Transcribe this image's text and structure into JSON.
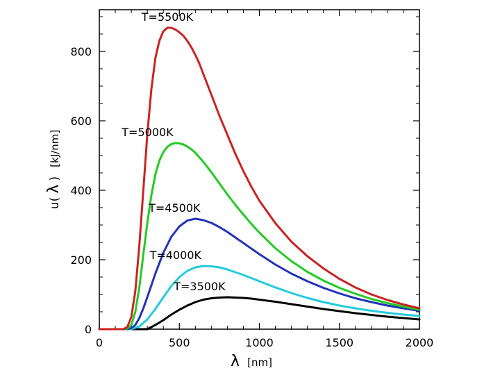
{
  "chart_data": {
    "type": "line",
    "title": "",
    "xlabel_symbol": "λ",
    "xlabel_unit": "[nm]",
    "ylabel_prefix": "u(",
    "ylabel_symbol": "λ",
    "ylabel_suffix": ")",
    "ylabel_unit": "[kJ/nm]",
    "xlim": [
      0,
      2000
    ],
    "ylim": [
      0,
      920
    ],
    "xticks": [
      0,
      500,
      1000,
      1500,
      2000
    ],
    "yticks": [
      0,
      200,
      400,
      600,
      800
    ],
    "grid": false,
    "series": [
      {
        "name": "T=5500K",
        "color": "#cc2222",
        "x": [
          150,
          175,
          200,
          225,
          250,
          275,
          300,
          325,
          350,
          375,
          400,
          425,
          450,
          475,
          500,
          525,
          550,
          575,
          600,
          625,
          650,
          675,
          700,
          750,
          800,
          850,
          900,
          950,
          1000,
          1100,
          1200,
          1300,
          1400,
          1500,
          1600,
          1700,
          1800,
          1900,
          2000
        ],
        "y": [
          0,
          6,
          35,
          110,
          240,
          400,
          560,
          690,
          780,
          830,
          858,
          868,
          868,
          863,
          855,
          845,
          830,
          812,
          790,
          765,
          735,
          705,
          675,
          615,
          560,
          505,
          455,
          410,
          370,
          305,
          252,
          210,
          175,
          145,
          120,
          100,
          84,
          71,
          60
        ]
      },
      {
        "name": "T=5000K",
        "color": "#22cc22",
        "x": [
          150,
          175,
          200,
          225,
          250,
          275,
          300,
          325,
          350,
          375,
          400,
          425,
          450,
          475,
          500,
          525,
          550,
          575,
          600,
          650,
          700,
          750,
          800,
          850,
          900,
          950,
          1000,
          1100,
          1200,
          1300,
          1400,
          1500,
          1600,
          1700,
          1800,
          1900,
          2000
        ],
        "y": [
          0,
          2,
          12,
          50,
          120,
          215,
          305,
          385,
          445,
          485,
          510,
          525,
          533,
          536,
          535,
          532,
          526,
          518,
          508,
          482,
          452,
          420,
          388,
          358,
          330,
          303,
          278,
          233,
          196,
          165,
          140,
          119,
          102,
          87,
          75,
          65,
          56
        ]
      },
      {
        "name": "T=4500K",
        "color": "#2233bb",
        "x": [
          175,
          200,
          225,
          250,
          275,
          300,
          350,
          400,
          450,
          500,
          550,
          600,
          650,
          700,
          750,
          800,
          850,
          900,
          950,
          1000,
          1100,
          1200,
          1300,
          1400,
          1500,
          1600,
          1700,
          1800,
          1900,
          2000
        ],
        "y": [
          0,
          3,
          12,
          32,
          60,
          92,
          160,
          220,
          266,
          296,
          313,
          318,
          314,
          306,
          294,
          280,
          264,
          248,
          232,
          216,
          186,
          160,
          138,
          119,
          103,
          89,
          78,
          68,
          60,
          53
        ]
      },
      {
        "name": "T=4000K",
        "color": "#22ccdd",
        "x": [
          200,
          250,
          300,
          350,
          400,
          450,
          500,
          550,
          600,
          650,
          700,
          750,
          800,
          850,
          900,
          950,
          1000,
          1100,
          1200,
          1300,
          1400,
          1500,
          1600,
          1700,
          1800,
          1900,
          2000
        ],
        "y": [
          0,
          8,
          28,
          58,
          92,
          124,
          150,
          168,
          178,
          182,
          181,
          178,
          172,
          164,
          156,
          147,
          138,
          120,
          104,
          90,
          78,
          68,
          60,
          53,
          47,
          42,
          38
        ]
      },
      {
        "name": "T=3500K",
        "color": "#000000",
        "x": [
          300,
          350,
          400,
          450,
          500,
          550,
          600,
          650,
          700,
          750,
          800,
          850,
          900,
          950,
          1000,
          1100,
          1200,
          1300,
          1400,
          1500,
          1600,
          1700,
          1800,
          1900,
          2000
        ],
        "y": [
          0,
          12,
          26,
          42,
          56,
          68,
          78,
          85,
          89,
          91,
          92,
          91,
          90,
          88,
          85,
          79,
          72,
          65,
          58,
          52,
          46,
          41,
          36,
          32,
          28
        ]
      }
    ]
  }
}
